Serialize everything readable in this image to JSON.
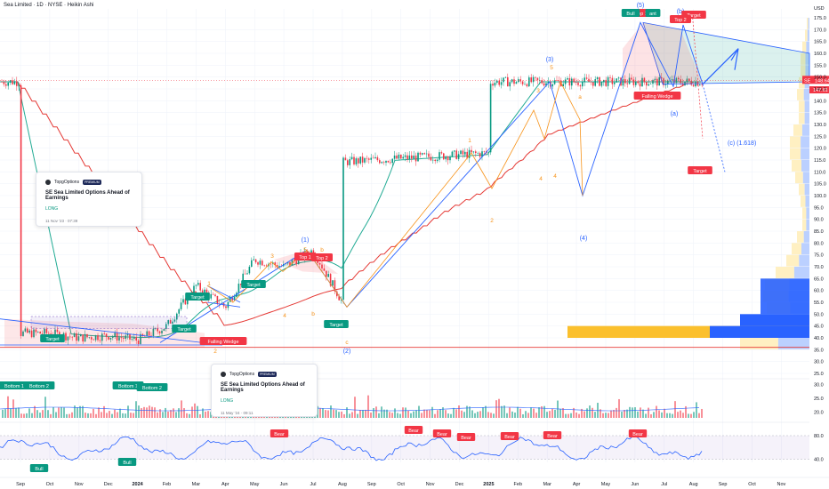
{
  "header": {
    "symbol_line": "Sea Limited · 1D · NYSE · Heikin Ashi"
  },
  "currency": "USD",
  "price_tags": {
    "symbol": "SE",
    "last": "148.64",
    "close": "147.61"
  },
  "colors": {
    "up": "#089981",
    "down": "#f23645",
    "blue": "#2962ff",
    "orange": "#f7931a",
    "ma_green": "#22ab94",
    "ma_red": "#e53935",
    "accent_yellow": "#fbc02d"
  },
  "cards": [
    {
      "brand": "TopgOptions",
      "badge": "PREMIUM",
      "title": "SE Sea Limited Options Ahead of Earnings",
      "direction": "LONG",
      "date": "11 Nov '23 · 07:39"
    },
    {
      "brand": "TopgOptions",
      "badge": "PREMIUM",
      "title": "SE Sea Limited Options Ahead of Earnings",
      "direction": "LONG",
      "date": "11 May '24 · 09:11"
    }
  ],
  "wave_labels": {
    "blue": [
      "(1)",
      "(2)",
      "(3)",
      "(4)",
      "(5)",
      "(a)",
      "(b)",
      "(c) (1.618)"
    ],
    "orange": [
      "1",
      "2",
      "3",
      "4",
      "5",
      "a",
      "b",
      "c"
    ]
  },
  "tags": {
    "target": "Target",
    "top1": "Top 1",
    "top2": "Top 2",
    "bottom1": "Bottom 1",
    "bottom2": "Bottom 2",
    "falling_wedge": "Falling Wedge",
    "bull": "Bull",
    "bear": "Bear"
  },
  "chart_data": [
    {
      "type": "candlestick",
      "title": "Sea Limited · 1D · NYSE · Heikin Ashi",
      "x_ticks": [
        "Sep",
        "Oct",
        "Nov",
        "Dec",
        "2024",
        "Feb",
        "Mar",
        "Apr",
        "May",
        "Jun",
        "Jul",
        "Aug",
        "Sep",
        "Oct",
        "Nov",
        "Dec",
        "2025",
        "Feb",
        "Mar",
        "Apr",
        "May",
        "Jun",
        "Jul",
        "Aug",
        "Sep",
        "Oct",
        "Nov"
      ],
      "y_ticks": [
        25,
        30,
        35,
        40,
        45,
        50,
        55,
        60,
        65,
        70,
        75,
        80,
        85,
        90,
        95,
        100,
        105,
        110,
        115,
        120,
        125,
        130,
        135,
        140,
        145,
        150,
        155,
        160,
        165,
        170,
        175
      ],
      "ylim": [
        24,
        180
      ],
      "price_path": [
        [
          "Sep",
          42
        ],
        [
          "Oct",
          42
        ],
        [
          "Nov",
          40
        ],
        [
          "Dec",
          41
        ],
        [
          "2024",
          39
        ],
        [
          "Feb",
          45
        ],
        [
          "Mar",
          62
        ],
        [
          "Apr",
          53
        ],
        [
          "May",
          73
        ],
        [
          "Jun",
          70
        ],
        [
          "Jul",
          77
        ],
        [
          "Aug",
          55
        ],
        [
          "Sep",
          78
        ],
        [
          "Oct",
          84
        ],
        [
          "Nov",
          112
        ],
        [
          "Dec",
          108
        ],
        [
          "2025",
          118
        ],
        [
          "Feb",
          138
        ],
        [
          "Mar",
          132
        ],
        [
          "Apr",
          100
        ],
        [
          "May",
          145
        ],
        [
          "Jun",
          172
        ],
        [
          "Jul",
          150
        ],
        [
          "Aug",
          148
        ]
      ],
      "last_price": 148.64,
      "close_price": 147.61
    },
    {
      "type": "bar",
      "title": "Volume",
      "y_ticks": [
        20.0,
        25.0,
        30.0
      ],
      "ylim": [
        18,
        32
      ]
    },
    {
      "type": "line",
      "title": "RSI",
      "y_ticks": [
        40.0,
        80.0
      ],
      "ylim": [
        20,
        95
      ],
      "signals": [
        "Bull",
        "Bull",
        "Bear",
        "Bear",
        "Bear",
        "Bear",
        "Bear",
        "Bear",
        "Bear"
      ]
    }
  ]
}
